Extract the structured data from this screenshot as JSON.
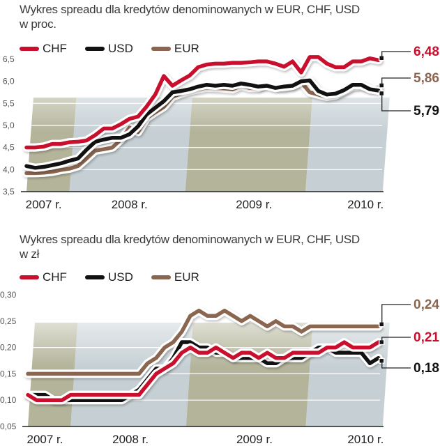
{
  "colors": {
    "CHF": "#c8102e",
    "USD": "#111111",
    "EUR": "#8a6650",
    "band_olive": "#a7a78a",
    "band_blue": "#bcc8cc",
    "grid": "#ffffff",
    "axis": "#222222"
  },
  "chart_data": [
    {
      "type": "line",
      "title": "Wykres spreadu dla kredytów denominowanych w EUR, CHF, USD",
      "subtitle": "w proc.",
      "xlabel": "",
      "ylabel": "",
      "ylim": [
        3.5,
        6.5
      ],
      "yticks": [
        3.5,
        4.0,
        4.5,
        5.0,
        5.5,
        6.0,
        6.5
      ],
      "ytick_labels": [
        "3,5",
        "4,0",
        "4,5",
        "5,0",
        "5,5",
        "6,0",
        "6,5"
      ],
      "xlim": [
        0,
        42
      ],
      "xticks": [
        {
          "x": 2,
          "label": "2007 r."
        },
        {
          "x": 12,
          "label": "2008 r."
        },
        {
          "x": 26.5,
          "label": "2009 r."
        },
        {
          "x": 39.5,
          "label": "2010 r."
        }
      ],
      "bands": [
        {
          "from": 0,
          "to": 5,
          "color": "band_olive"
        },
        {
          "from": 5,
          "to": 18.5,
          "color": "band_blue"
        },
        {
          "from": 18.5,
          "to": 32.5,
          "color": "band_olive"
        },
        {
          "from": 32.5,
          "to": 41.5,
          "color": "band_blue"
        }
      ],
      "grid": true,
      "legend_position": "top-left",
      "series": [
        {
          "name": "CHF",
          "values": [
            4.5,
            4.5,
            4.52,
            4.58,
            4.58,
            4.62,
            4.63,
            4.66,
            4.78,
            4.93,
            4.93,
            5.03,
            5.15,
            5.2,
            5.43,
            5.7,
            6.12,
            5.9,
            6.02,
            6.13,
            6.32,
            6.38,
            6.4,
            6.4,
            6.42,
            6.42,
            6.43,
            6.45,
            6.45,
            6.4,
            6.33,
            6.45,
            6.2,
            6.55,
            6.55,
            6.4,
            6.32,
            6.32,
            6.45,
            6.45,
            6.52,
            6.48
          ],
          "end_label": "6,48"
        },
        {
          "name": "USD",
          "values": [
            4.08,
            4.04,
            4.06,
            4.1,
            4.14,
            4.2,
            4.25,
            4.45,
            4.63,
            4.68,
            4.72,
            4.72,
            4.8,
            4.98,
            5.25,
            5.4,
            5.55,
            5.75,
            5.78,
            5.82,
            5.88,
            5.92,
            5.9,
            5.92,
            5.9,
            5.95,
            5.92,
            5.88,
            5.9,
            5.85,
            5.88,
            5.9,
            6.0,
            6.02,
            5.78,
            5.7,
            5.72,
            5.8,
            5.92,
            5.92,
            5.82,
            5.79
          ],
          "end_label": "5,79"
        },
        {
          "name": "EUR",
          "values": [
            3.92,
            3.92,
            3.93,
            3.95,
            3.99,
            4.02,
            4.08,
            4.25,
            4.43,
            4.46,
            4.5,
            4.68,
            4.95,
            4.85,
            5.17,
            5.3,
            5.42,
            5.65,
            5.72,
            5.78,
            5.82,
            5.86,
            5.85,
            5.84,
            5.82,
            5.9,
            5.85,
            5.85,
            5.95,
            5.88,
            5.86,
            5.9,
            5.98,
            5.75,
            5.7,
            5.65,
            5.68,
            5.78,
            5.88,
            5.9,
            5.84,
            5.86
          ],
          "end_label": "5,86"
        }
      ]
    },
    {
      "type": "line",
      "title": "Wykres spreadu dla kredytów denominowanych w EUR, CHF, USD",
      "subtitle": "w zł",
      "xlabel": "",
      "ylabel": "",
      "ylim": [
        0.05,
        0.3
      ],
      "yticks": [
        0.05,
        0.1,
        0.15,
        0.2,
        0.25,
        0.3
      ],
      "ytick_labels": [
        "0,05",
        "0,10",
        "0,15",
        "0,20",
        "0,25",
        "0,30"
      ],
      "xlim": [
        0,
        42
      ],
      "xticks": [
        {
          "x": 2,
          "label": "2007 r."
        },
        {
          "x": 12,
          "label": "2008 r."
        },
        {
          "x": 26.5,
          "label": "2009 r."
        },
        {
          "x": 39.5,
          "label": "2010 r."
        }
      ],
      "bands": [
        {
          "from": 0,
          "to": 5,
          "color": "band_olive"
        },
        {
          "from": 5,
          "to": 18.5,
          "color": "band_blue"
        },
        {
          "from": 18.5,
          "to": 32.5,
          "color": "band_olive"
        },
        {
          "from": 32.5,
          "to": 41.5,
          "color": "band_blue"
        }
      ],
      "grid": true,
      "legend_position": "top-left",
      "series": [
        {
          "name": "CHF",
          "values": [
            0.11,
            0.1,
            0.1,
            0.1,
            0.1,
            0.11,
            0.11,
            0.11,
            0.11,
            0.11,
            0.11,
            0.11,
            0.11,
            0.11,
            0.13,
            0.15,
            0.16,
            0.17,
            0.19,
            0.2,
            0.19,
            0.19,
            0.2,
            0.19,
            0.18,
            0.19,
            0.19,
            0.18,
            0.19,
            0.18,
            0.18,
            0.19,
            0.19,
            0.19,
            0.19,
            0.2,
            0.2,
            0.21,
            0.2,
            0.2,
            0.2,
            0.21
          ],
          "end_label": "0,21"
        },
        {
          "name": "USD",
          "values": [
            0.11,
            0.11,
            0.11,
            0.1,
            0.1,
            0.1,
            0.1,
            0.1,
            0.1,
            0.1,
            0.1,
            0.1,
            0.11,
            0.12,
            0.14,
            0.16,
            0.16,
            0.18,
            0.21,
            0.21,
            0.2,
            0.2,
            0.19,
            0.19,
            0.18,
            0.18,
            0.18,
            0.18,
            0.17,
            0.17,
            0.18,
            0.18,
            0.18,
            0.19,
            0.2,
            0.2,
            0.19,
            0.19,
            0.19,
            0.19,
            0.17,
            0.18
          ],
          "end_label": "0,18"
        },
        {
          "name": "EUR",
          "values": [
            0.15,
            0.15,
            0.15,
            0.15,
            0.15,
            0.15,
            0.15,
            0.15,
            0.15,
            0.15,
            0.15,
            0.15,
            0.15,
            0.15,
            0.17,
            0.18,
            0.2,
            0.21,
            0.23,
            0.26,
            0.27,
            0.26,
            0.26,
            0.27,
            0.26,
            0.25,
            0.26,
            0.25,
            0.24,
            0.25,
            0.24,
            0.24,
            0.23,
            0.24,
            0.24,
            0.24,
            0.24,
            0.24,
            0.24,
            0.24,
            0.24,
            0.24
          ],
          "end_label": "0,24"
        }
      ]
    }
  ],
  "charts": [
    {
      "title_line1": "Wykres spreadu dla kredytów denominowanych w EUR, CHF, USD",
      "title_line2": "w proc.",
      "legend": [
        {
          "key": "CHF",
          "label": "CHF"
        },
        {
          "key": "USD",
          "label": "USD"
        },
        {
          "key": "EUR",
          "label": "EUR"
        }
      ]
    },
    {
      "title_line1": "Wykres spreadu dla kredytów denominowanych w EUR, CHF, USD",
      "title_line2": "w zł",
      "legend": [
        {
          "key": "CHF",
          "label": "CHF"
        },
        {
          "key": "USD",
          "label": "USD"
        },
        {
          "key": "EUR",
          "label": "EUR"
        }
      ]
    }
  ]
}
